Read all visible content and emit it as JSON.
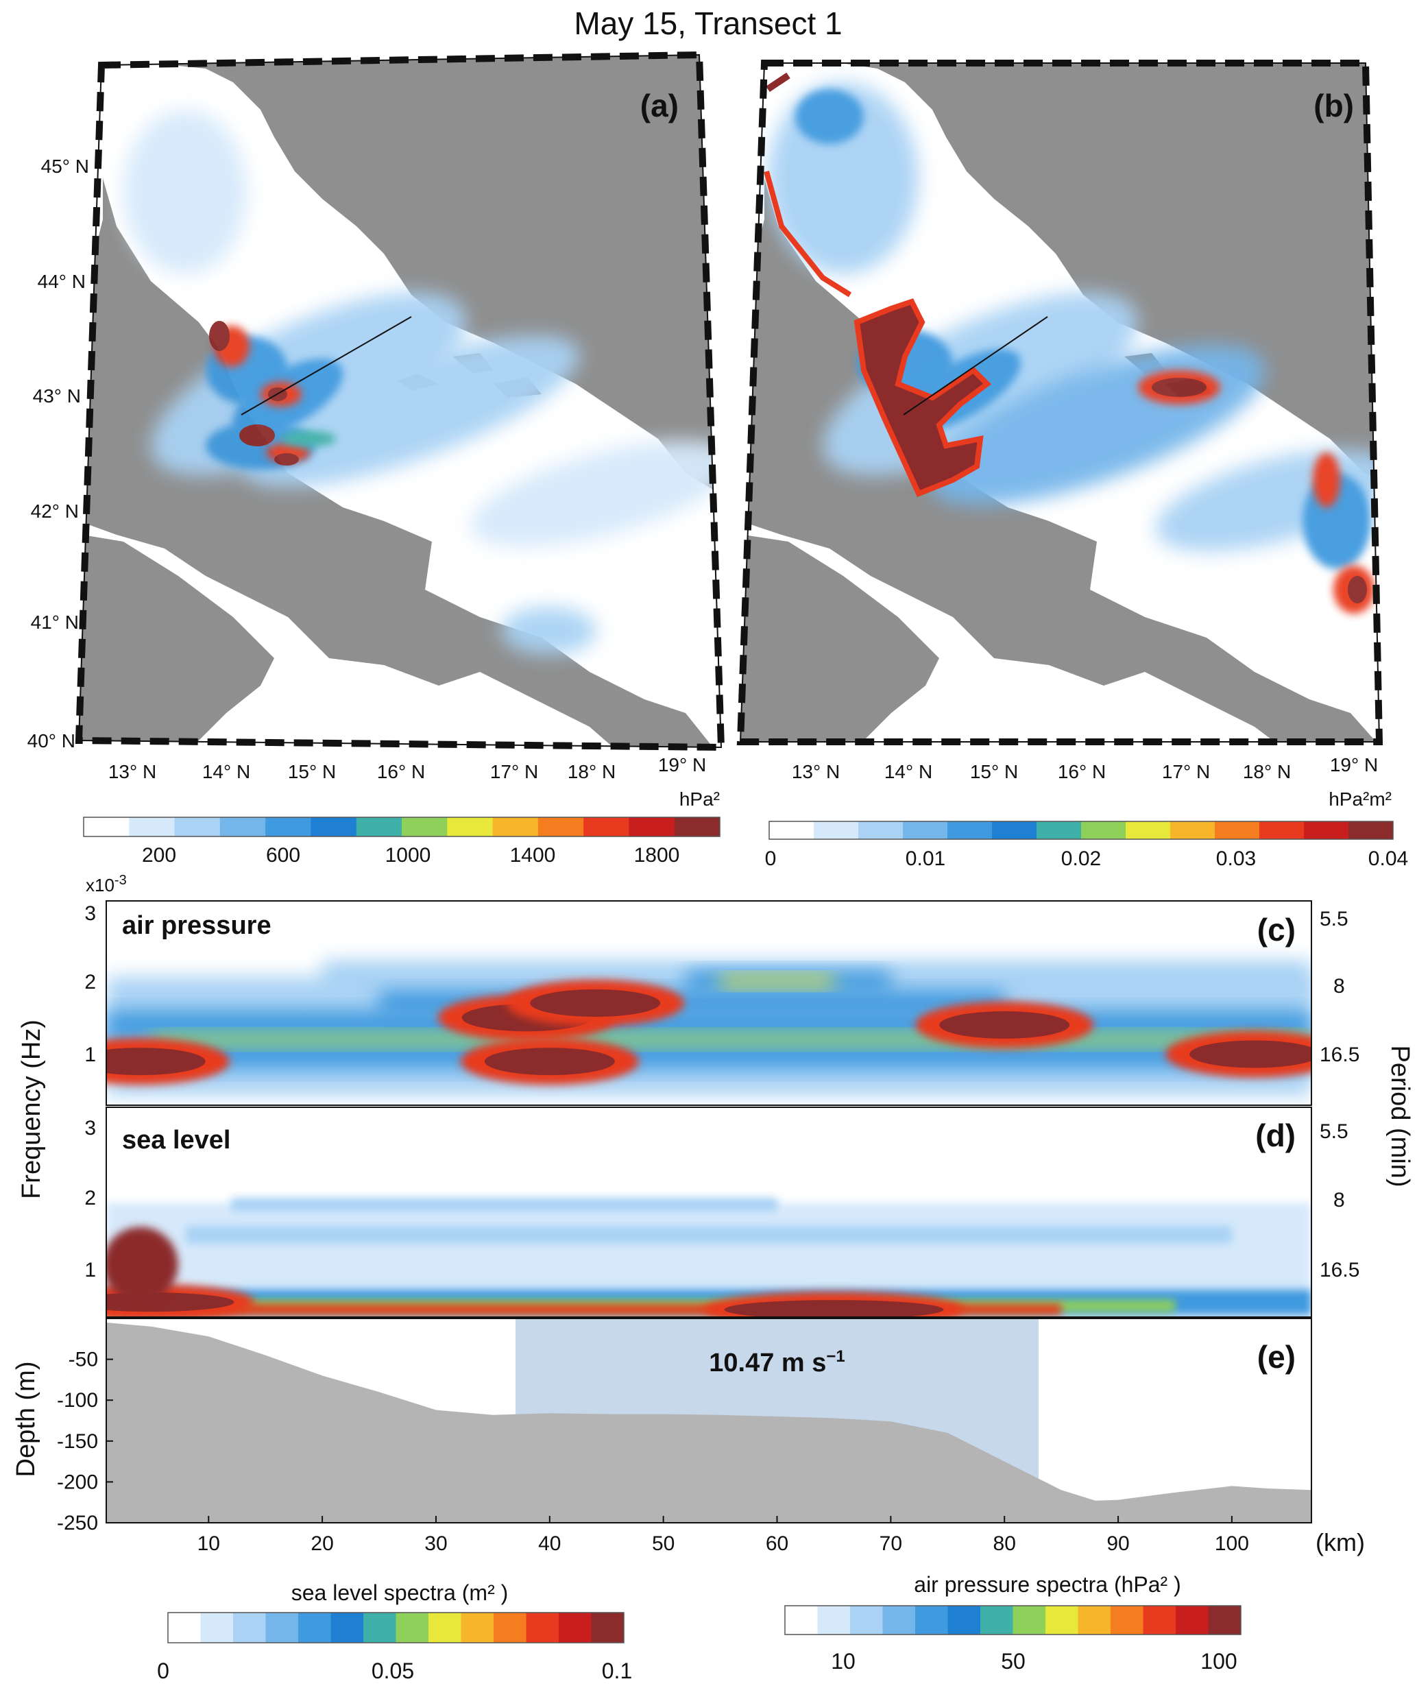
{
  "figure": {
    "title": "May 15, Transect 1"
  },
  "maps": [
    {
      "panel": "(a)",
      "lat_labels": [
        "45° N",
        "44° N",
        "43° N",
        "42° N",
        "41° N",
        "40° N"
      ],
      "lon_labels": [
        "13° N",
        "14° N",
        "15° N",
        "16° N",
        "17° N",
        "18° N",
        "19° N"
      ],
      "colorbar": {
        "unit": "hPa²",
        "ticks": [
          "200",
          "600",
          "1000",
          "1400",
          "1800"
        ],
        "range": [
          0,
          2000
        ]
      }
    },
    {
      "panel": "(b)",
      "lat_labels": [],
      "lon_labels": [
        "13° N",
        "14° N",
        "15° N",
        "16° N",
        "17° N",
        "18° N",
        "19° N"
      ],
      "colorbar": {
        "unit": "hPa²m²",
        "ticks": [
          "0",
          "0.01",
          "0.02",
          "0.03",
          "0.04"
        ],
        "range": [
          0,
          0.04
        ]
      }
    }
  ],
  "chart_data": [
    {
      "type": "heatmap",
      "panel": "(c)",
      "label": "air pressure",
      "ylabel": "Frequency (Hz)",
      "y_exponent": "x10",
      "y_exponent_power": "-3",
      "yticks": [
        "1",
        "2",
        "3"
      ],
      "ylim": [
        0.0002,
        0.003
      ],
      "right_label": "Period (min)",
      "right_ticks": [
        "5.5",
        "8",
        "16.5"
      ],
      "xlim": [
        1,
        107
      ],
      "hotspots": [
        {
          "x": 4,
          "f": 0.0008,
          "level": "high"
        },
        {
          "x": 38,
          "f": 0.0014,
          "level": "high"
        },
        {
          "x": 44,
          "f": 0.0016,
          "level": "high"
        },
        {
          "x": 40,
          "f": 0.0008,
          "level": "high"
        },
        {
          "x": 80,
          "f": 0.0013,
          "level": "high"
        },
        {
          "x": 102,
          "f": 0.0009,
          "level": "high"
        }
      ]
    },
    {
      "type": "heatmap",
      "panel": "(d)",
      "label": "sea level",
      "yticks": [
        "1",
        "2",
        "3"
      ],
      "ylim": [
        0.0002,
        0.003
      ],
      "right_ticks": [
        "5.5",
        "8",
        "16.5"
      ],
      "xlim": [
        1,
        107
      ],
      "hotspots": [
        {
          "x": 5,
          "f": 0.0004,
          "level": "high"
        },
        {
          "x": 65,
          "f": 0.0003,
          "level": "high"
        }
      ]
    },
    {
      "type": "area",
      "panel": "(e)",
      "ylabel": "Depth (m)",
      "xlabel": "(km)",
      "xticks": [
        "10",
        "20",
        "30",
        "40",
        "50",
        "60",
        "70",
        "80",
        "90",
        "100"
      ],
      "yticks": [
        "-50",
        "-100",
        "-150",
        "-200",
        "-250"
      ],
      "xlim": [
        1,
        107
      ],
      "ylim": [
        -250,
        0
      ],
      "x": [
        1,
        5,
        10,
        15,
        20,
        25,
        30,
        35,
        40,
        45,
        50,
        55,
        60,
        65,
        70,
        75,
        80,
        85,
        88,
        90,
        95,
        100,
        103,
        107
      ],
      "y": [
        -5,
        -10,
        -22,
        -45,
        -70,
        -90,
        -112,
        -118,
        -116,
        -117,
        -117,
        -118,
        -120,
        -122,
        -126,
        -140,
        -175,
        -210,
        -223,
        -222,
        -213,
        -205,
        -208,
        -210
      ],
      "highlight": {
        "x": [
          37,
          83
        ],
        "label": "10.47 m s",
        "exp": "−1",
        "color": "#c7d8ea"
      }
    }
  ],
  "colorbars_bottom": [
    {
      "title": "sea level spectra (m² )",
      "ticks": [
        "0",
        "0.05",
        "0.1"
      ],
      "range": [
        0,
        0.1
      ]
    },
    {
      "title": "air pressure spectra (hPa² )",
      "ticks": [
        "10",
        "50",
        "100"
      ],
      "range": [
        0,
        110
      ]
    }
  ],
  "colors": {
    "land": "#8f8f8f",
    "sea": "#ffffff",
    "topography": "#b4b4b4",
    "scale": [
      "#ffffff",
      "#d6e9fb",
      "#a9d2f4",
      "#74b5ea",
      "#3f9adf",
      "#1f7fd2",
      "#3fb0a8",
      "#8fd05a",
      "#e8e83a",
      "#f7b52a",
      "#f57d1f",
      "#e83a1f",
      "#c81e1e",
      "#8c2b2b"
    ]
  }
}
